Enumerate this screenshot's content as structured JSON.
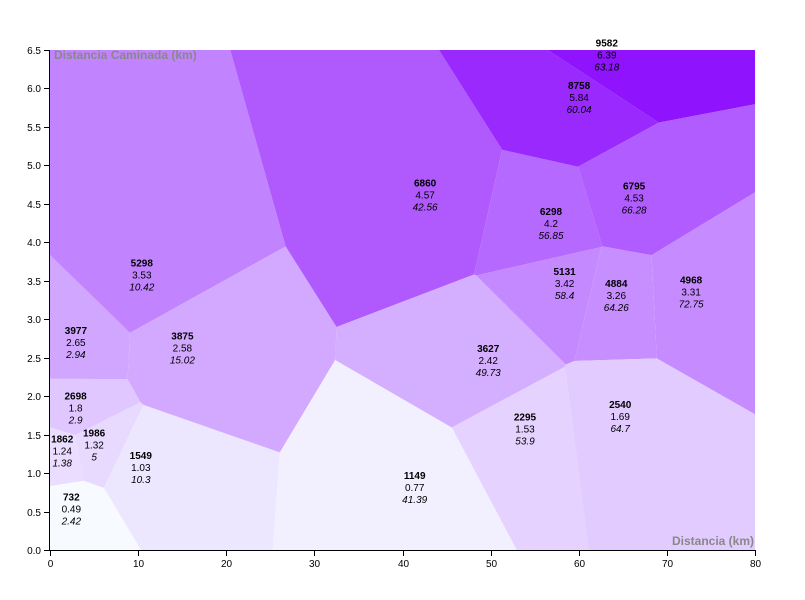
{
  "chart_data": {
    "type": "voronoi",
    "xlabel": "Distancia (km)",
    "ylabel": "Distancia Caminada (km)",
    "xlim": [
      0,
      80
    ],
    "ylim": [
      0,
      6.5
    ],
    "x_ticks": [
      "0",
      "10",
      "20",
      "30",
      "40",
      "50",
      "60",
      "70",
      "80"
    ],
    "y_ticks": [
      "0.0",
      "0.5",
      "1.0",
      "1.5",
      "2.0",
      "2.5",
      "3.0",
      "3.5",
      "4.0",
      "4.5",
      "5.0",
      "5.5",
      "6.0",
      "6.5"
    ],
    "color_scale": [
      "#f7fbff",
      "#9013fe"
    ],
    "grid": false,
    "points": [
      {
        "x": 2.42,
        "y": 0.49,
        "steps": "732",
        "walked": "0.49",
        "distance": "2.42"
      },
      {
        "x": 1.38,
        "y": 1.24,
        "steps": "1862",
        "walked": "1.24",
        "distance": "1.38"
      },
      {
        "x": 5,
        "y": 1.32,
        "steps": "1986",
        "walked": "1.32",
        "distance": "5"
      },
      {
        "x": 2.9,
        "y": 1.8,
        "steps": "2698",
        "walked": "1.8",
        "distance": "2.9"
      },
      {
        "x": 2.94,
        "y": 2.65,
        "steps": "3977",
        "walked": "2.65",
        "distance": "2.94"
      },
      {
        "x": 10.3,
        "y": 1.03,
        "steps": "1549",
        "walked": "1.03",
        "distance": "10.3"
      },
      {
        "x": 10.42,
        "y": 3.53,
        "steps": "5298",
        "walked": "3.53",
        "distance": "10.42"
      },
      {
        "x": 15.02,
        "y": 2.58,
        "steps": "3875",
        "walked": "2.58",
        "distance": "15.02"
      },
      {
        "x": 41.39,
        "y": 0.77,
        "steps": "1149",
        "walked": "0.77",
        "distance": "41.39"
      },
      {
        "x": 42.56,
        "y": 4.57,
        "steps": "6860",
        "walked": "4.57",
        "distance": "42.56"
      },
      {
        "x": 49.73,
        "y": 2.42,
        "steps": "3627",
        "walked": "2.42",
        "distance": "49.73"
      },
      {
        "x": 53.9,
        "y": 1.53,
        "steps": "2295",
        "walked": "1.53",
        "distance": "53.9"
      },
      {
        "x": 56.85,
        "y": 4.2,
        "steps": "6298",
        "walked": "4.2",
        "distance": "56.85"
      },
      {
        "x": 58.4,
        "y": 3.42,
        "steps": "5131",
        "walked": "3.42",
        "distance": "58.4"
      },
      {
        "x": 60.04,
        "y": 5.84,
        "steps": "8758",
        "walked": "5.84",
        "distance": "60.04"
      },
      {
        "x": 63.18,
        "y": 6.39,
        "steps": "9582",
        "walked": "6.39",
        "distance": "63.18"
      },
      {
        "x": 64.26,
        "y": 3.26,
        "steps": "4884",
        "walked": "3.26",
        "distance": "64.26"
      },
      {
        "x": 64.7,
        "y": 1.69,
        "steps": "2540",
        "walked": "1.69",
        "distance": "64.7"
      },
      {
        "x": 66.28,
        "y": 4.53,
        "steps": "6795",
        "walked": "4.53",
        "distance": "66.28"
      },
      {
        "x": 72.75,
        "y": 3.31,
        "steps": "4968",
        "walked": "3.31",
        "distance": "72.75"
      }
    ]
  }
}
